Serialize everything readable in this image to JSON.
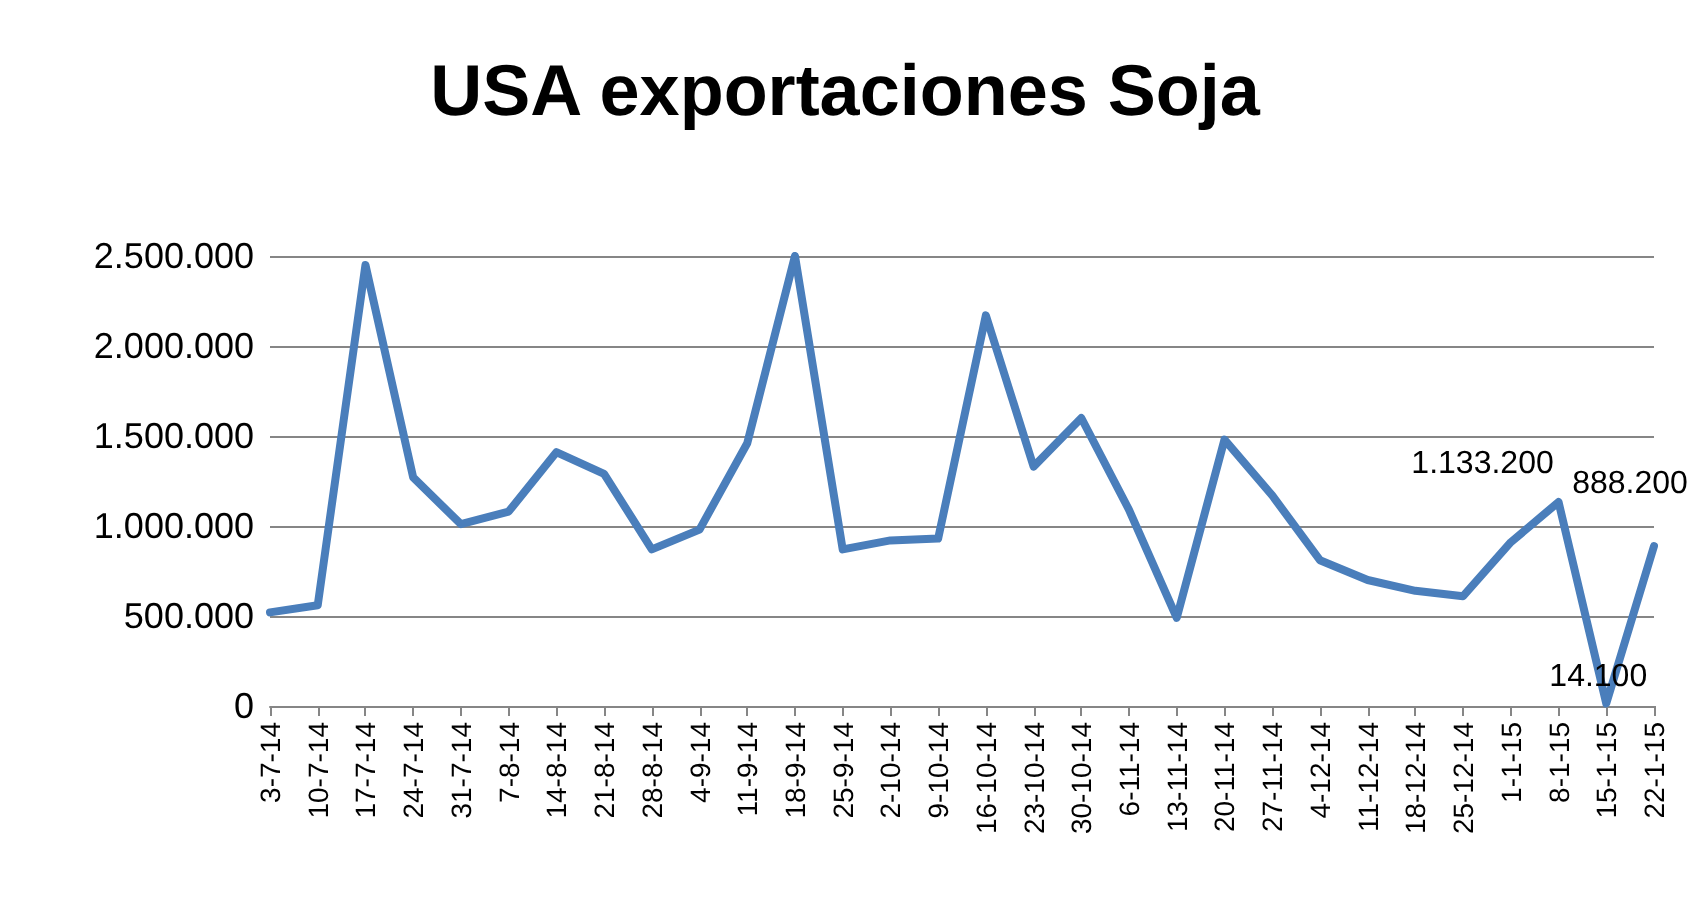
{
  "chart_data": {
    "type": "line",
    "title": "USA exportaciones Soja",
    "categories": [
      "3-7-14",
      "10-7-14",
      "17-7-14",
      "24-7-14",
      "31-7-14",
      "7-8-14",
      "14-8-14",
      "21-8-14",
      "28-8-14",
      "4-9-14",
      "11-9-14",
      "18-9-14",
      "25-9-14",
      "2-10-14",
      "9-10-14",
      "16-10-14",
      "23-10-14",
      "30-10-14",
      "6-11-14",
      "13-11-14",
      "20-11-14",
      "27-11-14",
      "4-12-14",
      "11-12-14",
      "18-12-14",
      "25-12-14",
      "1-1-15",
      "8-1-15",
      "15-1-15",
      "22-1-15"
    ],
    "series": [
      {
        "color": "#4a7ebb",
        "values": [
          520000,
          560000,
          2450000,
          1270000,
          1010000,
          1080000,
          1410000,
          1290000,
          870000,
          980000,
          1460000,
          2500000,
          870000,
          920000,
          930000,
          2170000,
          1330000,
          1600000,
          1090000,
          490000,
          1480000,
          1170000,
          810000,
          700000,
          640000,
          610000,
          910000,
          1133200,
          14100,
          888200
        ],
        "value_labels": [
          null,
          null,
          null,
          null,
          null,
          null,
          null,
          null,
          null,
          null,
          null,
          null,
          null,
          null,
          null,
          null,
          null,
          null,
          null,
          null,
          null,
          null,
          null,
          null,
          null,
          null,
          null,
          "1.133.200",
          "14.100",
          "888.200"
        ]
      }
    ],
    "ylim": [
      0,
      2500000
    ],
    "yticks": [
      {
        "value": 0,
        "label": "0"
      },
      {
        "value": 500000,
        "label": "500.000"
      },
      {
        "value": 1000000,
        "label": "1.000.000"
      },
      {
        "value": 1500000,
        "label": "1.500.000"
      },
      {
        "value": 2000000,
        "label": "2.000.000"
      },
      {
        "value": 2500000,
        "label": "2.500.000"
      }
    ],
    "grid": "y",
    "marker": "none",
    "line_style": "solid"
  }
}
